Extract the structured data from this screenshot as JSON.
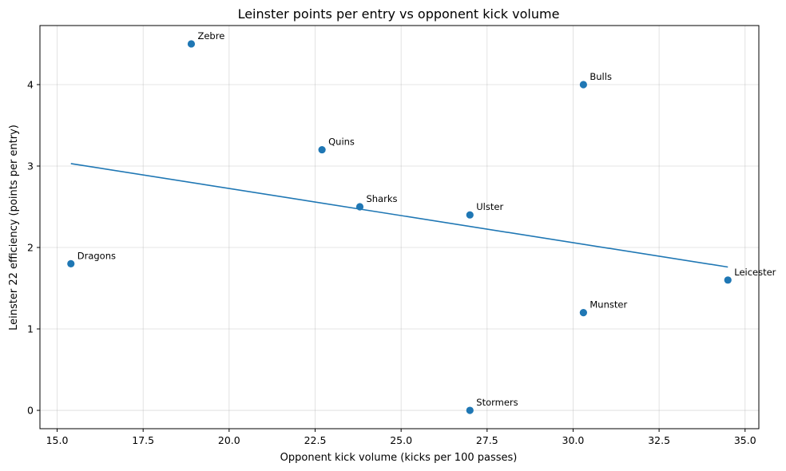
{
  "chart_data": {
    "type": "scatter",
    "title": "Leinster points per entry vs opponent kick volume",
    "xlabel": "Opponent kick volume (kicks per 100 passes)",
    "ylabel": "Leinster 22 efficiency (points per entry)",
    "xlim": [
      14.5,
      35.4
    ],
    "ylim": [
      -0.225,
      4.725
    ],
    "xticks": [
      15.0,
      17.5,
      20.0,
      22.5,
      25.0,
      27.5,
      30.0,
      32.5,
      35.0
    ],
    "xtick_labels": [
      "15.0",
      "17.5",
      "20.0",
      "22.5",
      "25.0",
      "27.5",
      "30.0",
      "32.5",
      "35.0"
    ],
    "yticks": [
      0,
      1,
      2,
      3,
      4
    ],
    "ytick_labels": [
      "0",
      "1",
      "2",
      "3",
      "4"
    ],
    "grid": true,
    "marker_color": "#1f77b4",
    "line_color": "#1f77b4",
    "points": [
      {
        "label": "Zebre",
        "x": 18.9,
        "y": 4.5
      },
      {
        "label": "Bulls",
        "x": 30.3,
        "y": 4.0
      },
      {
        "label": "Quins",
        "x": 22.7,
        "y": 3.2
      },
      {
        "label": "Sharks",
        "x": 23.8,
        "y": 2.5
      },
      {
        "label": "Ulster",
        "x": 27.0,
        "y": 2.4
      },
      {
        "label": "Dragons",
        "x": 15.4,
        "y": 1.8
      },
      {
        "label": "Leicester",
        "x": 34.5,
        "y": 1.6
      },
      {
        "label": "Munster",
        "x": 30.3,
        "y": 1.2
      },
      {
        "label": "Stormers",
        "x": 27.0,
        "y": 0.0
      }
    ],
    "trendline": {
      "x": [
        15.4,
        34.5
      ],
      "y": [
        3.03,
        1.76
      ]
    }
  }
}
